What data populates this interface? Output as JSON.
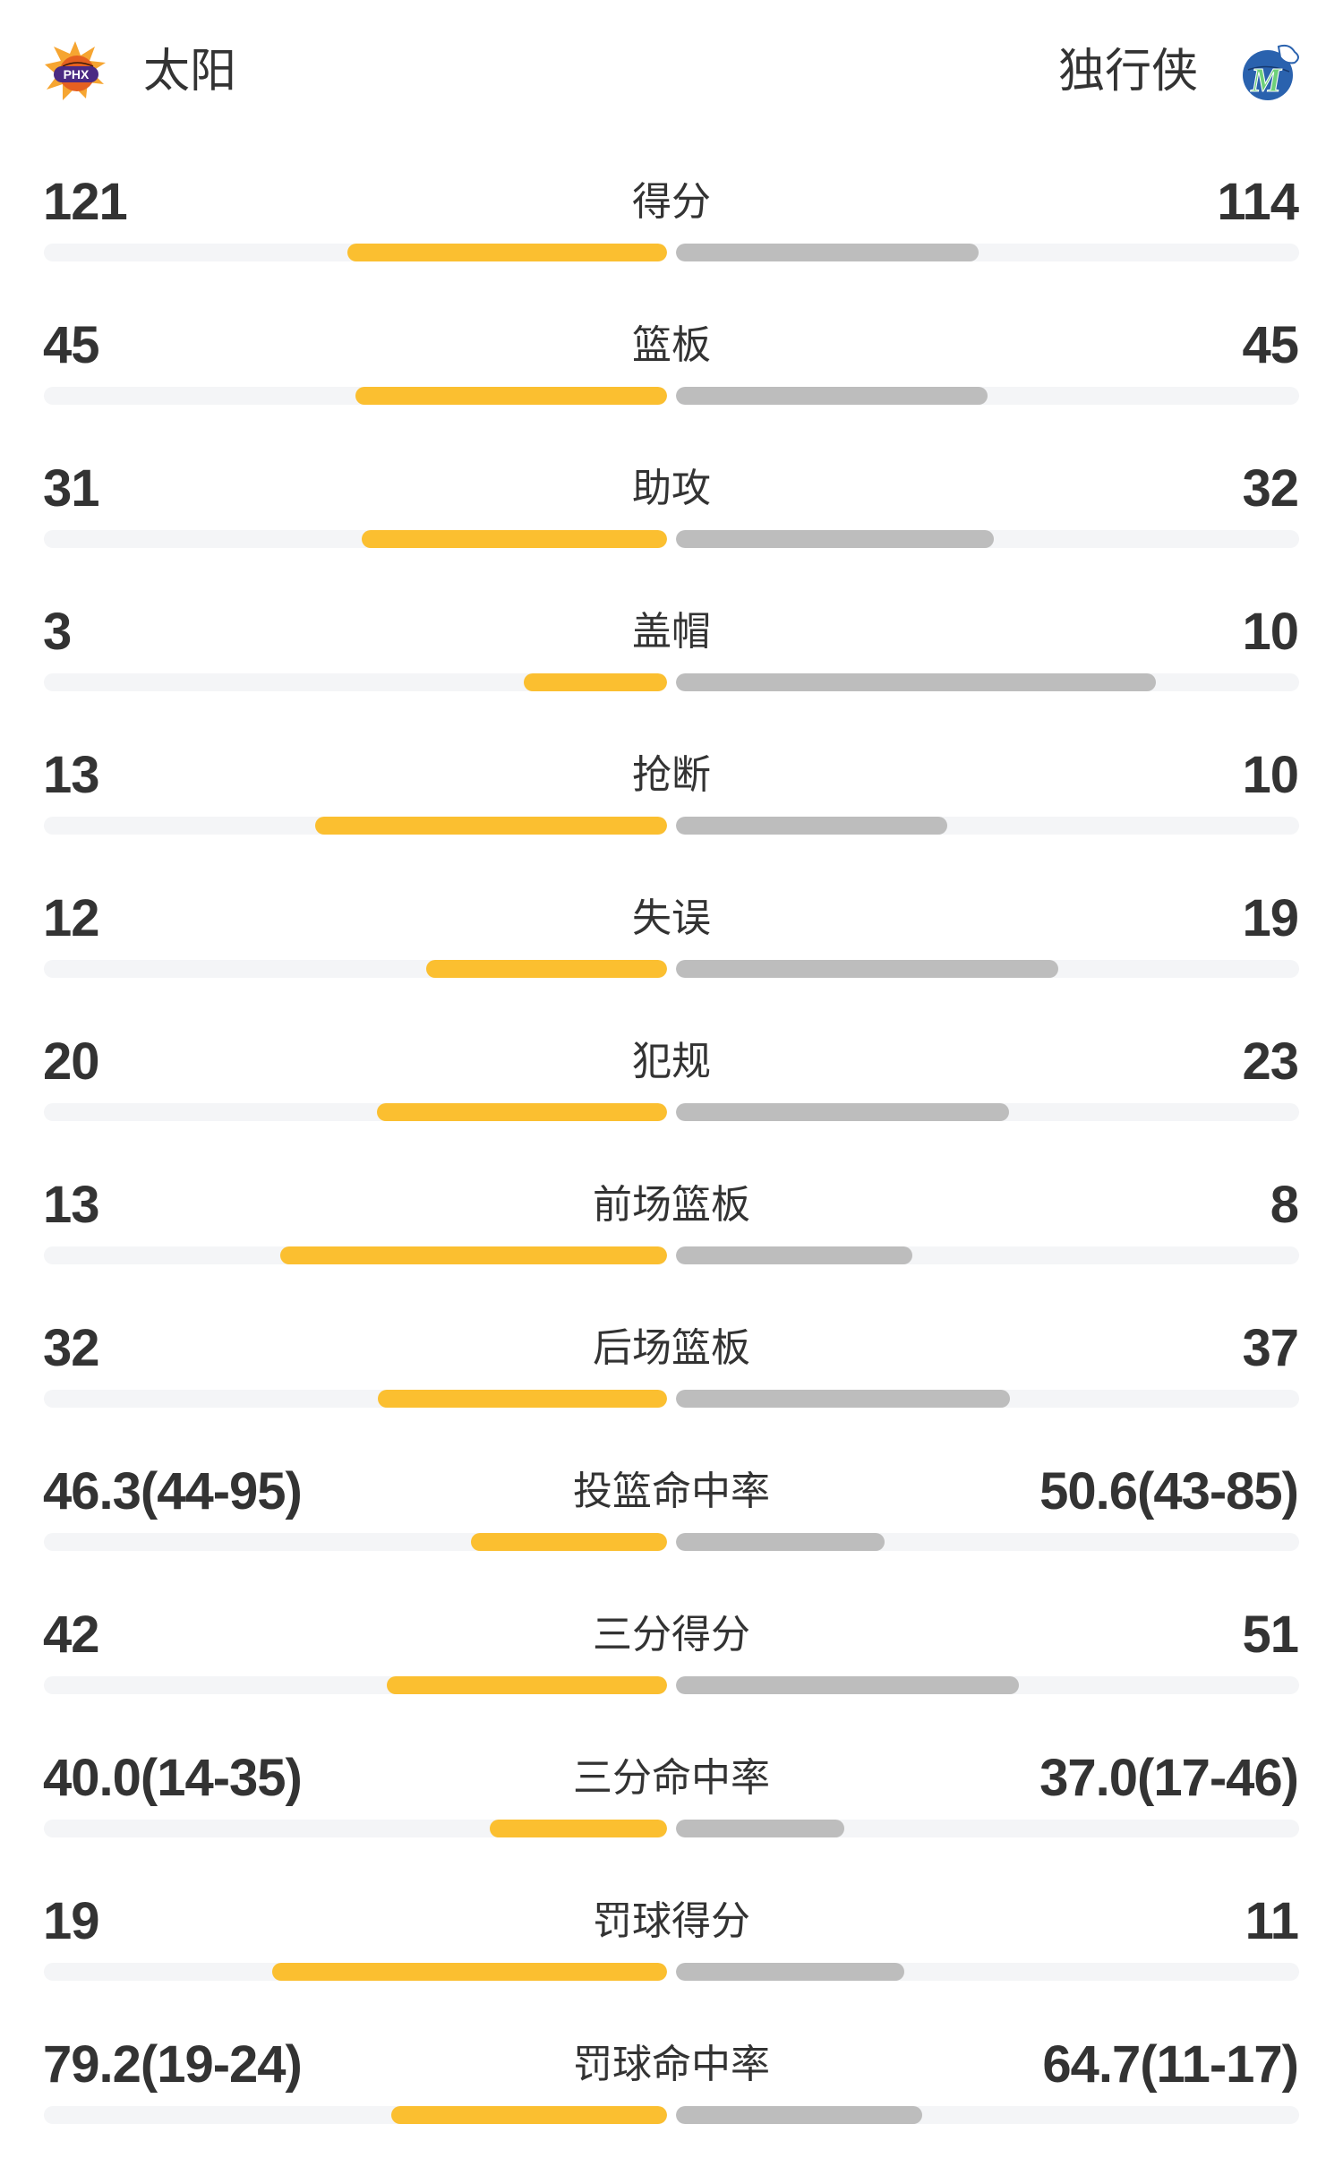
{
  "header": {
    "home_team": "太阳",
    "away_team": "独行侠",
    "home_logo_text": "PHX",
    "away_logo_text": "M"
  },
  "colors": {
    "home_bar": "#FBBF30",
    "away_bar": "#BDBDBD",
    "track": "#F4F5F7",
    "text": "#333333"
  },
  "stats": [
    {
      "label": "得分",
      "home": "121",
      "away": "114",
      "home_fill": 0.513,
      "away_fill": 0.485
    },
    {
      "label": "篮板",
      "home": "45",
      "away": "45",
      "home_fill": 0.5,
      "away_fill": 0.5
    },
    {
      "label": "助攻",
      "home": "31",
      "away": "32",
      "home_fill": 0.49,
      "away_fill": 0.51
    },
    {
      "label": "盖帽",
      "home": "3",
      "away": "10",
      "home_fill": 0.23,
      "away_fill": 0.77
    },
    {
      "label": "抢断",
      "home": "13",
      "away": "10",
      "home_fill": 0.565,
      "away_fill": 0.435
    },
    {
      "label": "失误",
      "home": "12",
      "away": "19",
      "home_fill": 0.387,
      "away_fill": 0.613
    },
    {
      "label": "犯规",
      "home": "20",
      "away": "23",
      "home_fill": 0.465,
      "away_fill": 0.535
    },
    {
      "label": "前场篮板",
      "home": "13",
      "away": "8",
      "home_fill": 0.62,
      "away_fill": 0.38
    },
    {
      "label": "后场篮板",
      "home": "32",
      "away": "37",
      "home_fill": 0.464,
      "away_fill": 0.536
    },
    {
      "label": "投篮命中率",
      "home": "46.3(44-95)",
      "away": "50.6(43-85)",
      "home_fill": 0.315,
      "away_fill": 0.335
    },
    {
      "label": "三分得分",
      "home": "42",
      "away": "51",
      "home_fill": 0.45,
      "away_fill": 0.55
    },
    {
      "label": "三分命中率",
      "home": "40.0(14-35)",
      "away": "37.0(17-46)",
      "home_fill": 0.284,
      "away_fill": 0.27
    },
    {
      "label": "罚球得分",
      "home": "19",
      "away": "11",
      "home_fill": 0.633,
      "away_fill": 0.367
    },
    {
      "label": "罚球命中率",
      "home": "79.2(19-24)",
      "away": "64.7(11-17)",
      "home_fill": 0.443,
      "away_fill": 0.395
    }
  ]
}
